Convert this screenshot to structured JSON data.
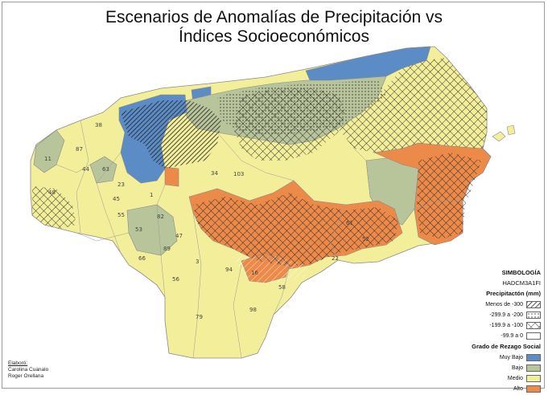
{
  "title_line1": "Escenarios de Anomalías de Precipitación vs",
  "title_line2": "Índices Socioeconómicos",
  "colors": {
    "muy_bajo": "#5b8cc6",
    "bajo": "#b8c49a",
    "medio": "#f2ee9a",
    "alto": "#ec8a4a",
    "water": "#ffffff",
    "border": "#8a8a8a"
  },
  "municipality_labels": [
    "38",
    "87",
    "11",
    "44",
    "48",
    "63",
    "23",
    "45",
    "1",
    "55",
    "53",
    "82",
    "47",
    "89",
    "66",
    "3",
    "56",
    "34",
    "103",
    "61",
    "22",
    "16",
    "94",
    "58",
    "98",
    "79",
    "52"
  ],
  "legend": {
    "title": "SIMBOLOGÍA",
    "model": "HADCM3A1FI",
    "precip_title": "Precipitactón (mm)",
    "precip_items": [
      "Menos de -300",
      "-299.9 a -200",
      "-199.9 a -100",
      "-99.9 a 0"
    ],
    "social_title": "Grado de Rezago Social",
    "social_items": [
      "Muy Bajo",
      "Bajo",
      "Medio",
      "Alto"
    ]
  },
  "credits": {
    "label": "Elaboró:",
    "author1": "Carolina Cuanalo",
    "author2": "Roger Orellana"
  }
}
